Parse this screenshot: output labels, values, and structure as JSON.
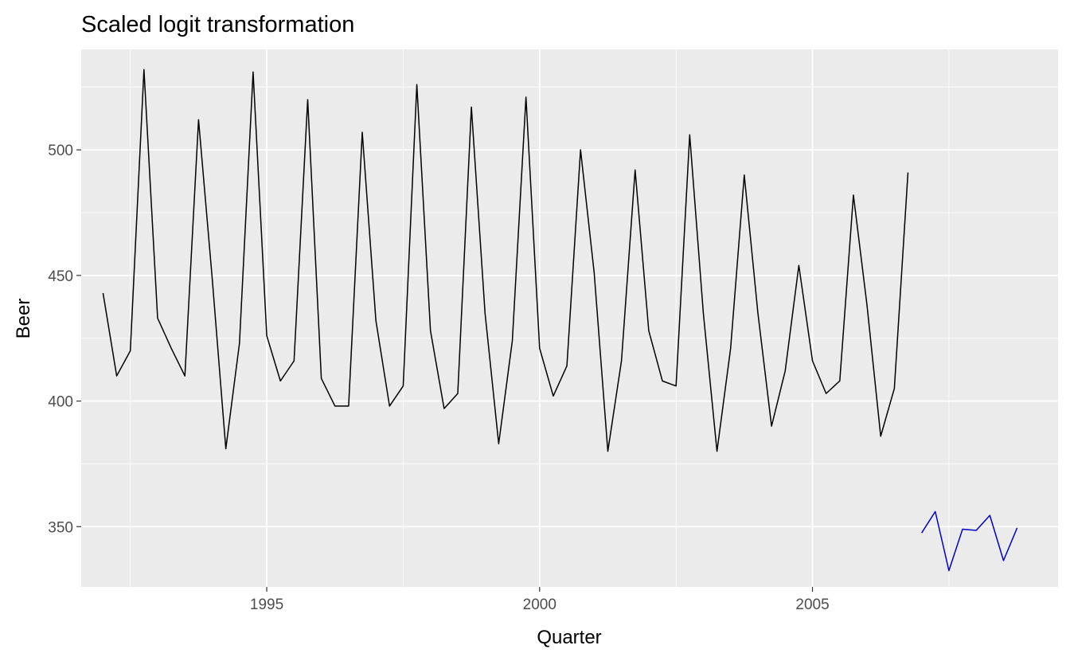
{
  "chart_data": {
    "type": "line",
    "title": "Scaled logit transformation",
    "xlabel": "Quarter",
    "ylabel": "Beer",
    "xlim": [
      1991.6,
      2009.5
    ],
    "ylim": [
      326,
      540
    ],
    "x_ticks": [
      {
        "value": 1995,
        "label": "1995"
      },
      {
        "value": 2000,
        "label": "2000"
      },
      {
        "value": 2005,
        "label": "2005"
      }
    ],
    "y_ticks": [
      {
        "value": 350,
        "label": "350"
      },
      {
        "value": 400,
        "label": "400"
      },
      {
        "value": 450,
        "label": "450"
      },
      {
        "value": 500,
        "label": "500"
      }
    ],
    "x_minor_ticks": [
      1992.5,
      1997.5,
      2002.5,
      2007.5
    ],
    "y_minor_ticks": [
      375,
      425,
      475,
      525
    ],
    "grid": true,
    "legend": "none",
    "series": [
      {
        "role": "history",
        "color": "#000000",
        "start": 1992.0,
        "step": 0.25,
        "values": [
          443,
          410,
          420,
          532,
          433,
          421,
          410,
          512,
          449,
          381,
          423,
          531,
          426,
          408,
          416,
          520,
          409,
          398,
          398,
          507,
          432,
          398,
          406,
          526,
          428,
          397,
          403,
          517,
          435,
          383,
          424,
          521,
          421,
          402,
          414,
          500,
          451,
          380,
          416,
          492,
          428,
          408,
          406,
          506,
          435,
          380,
          421,
          490,
          435,
          390,
          412,
          454,
          416,
          403,
          408,
          482,
          438,
          386,
          405,
          491
        ]
      },
      {
        "role": "forecast",
        "color": "#0000CC",
        "start": 2007.0,
        "step": 0.25,
        "values": [
          347.5,
          356,
          332.5,
          349,
          348.5,
          354.5,
          336.5,
          349.5
        ]
      }
    ]
  }
}
